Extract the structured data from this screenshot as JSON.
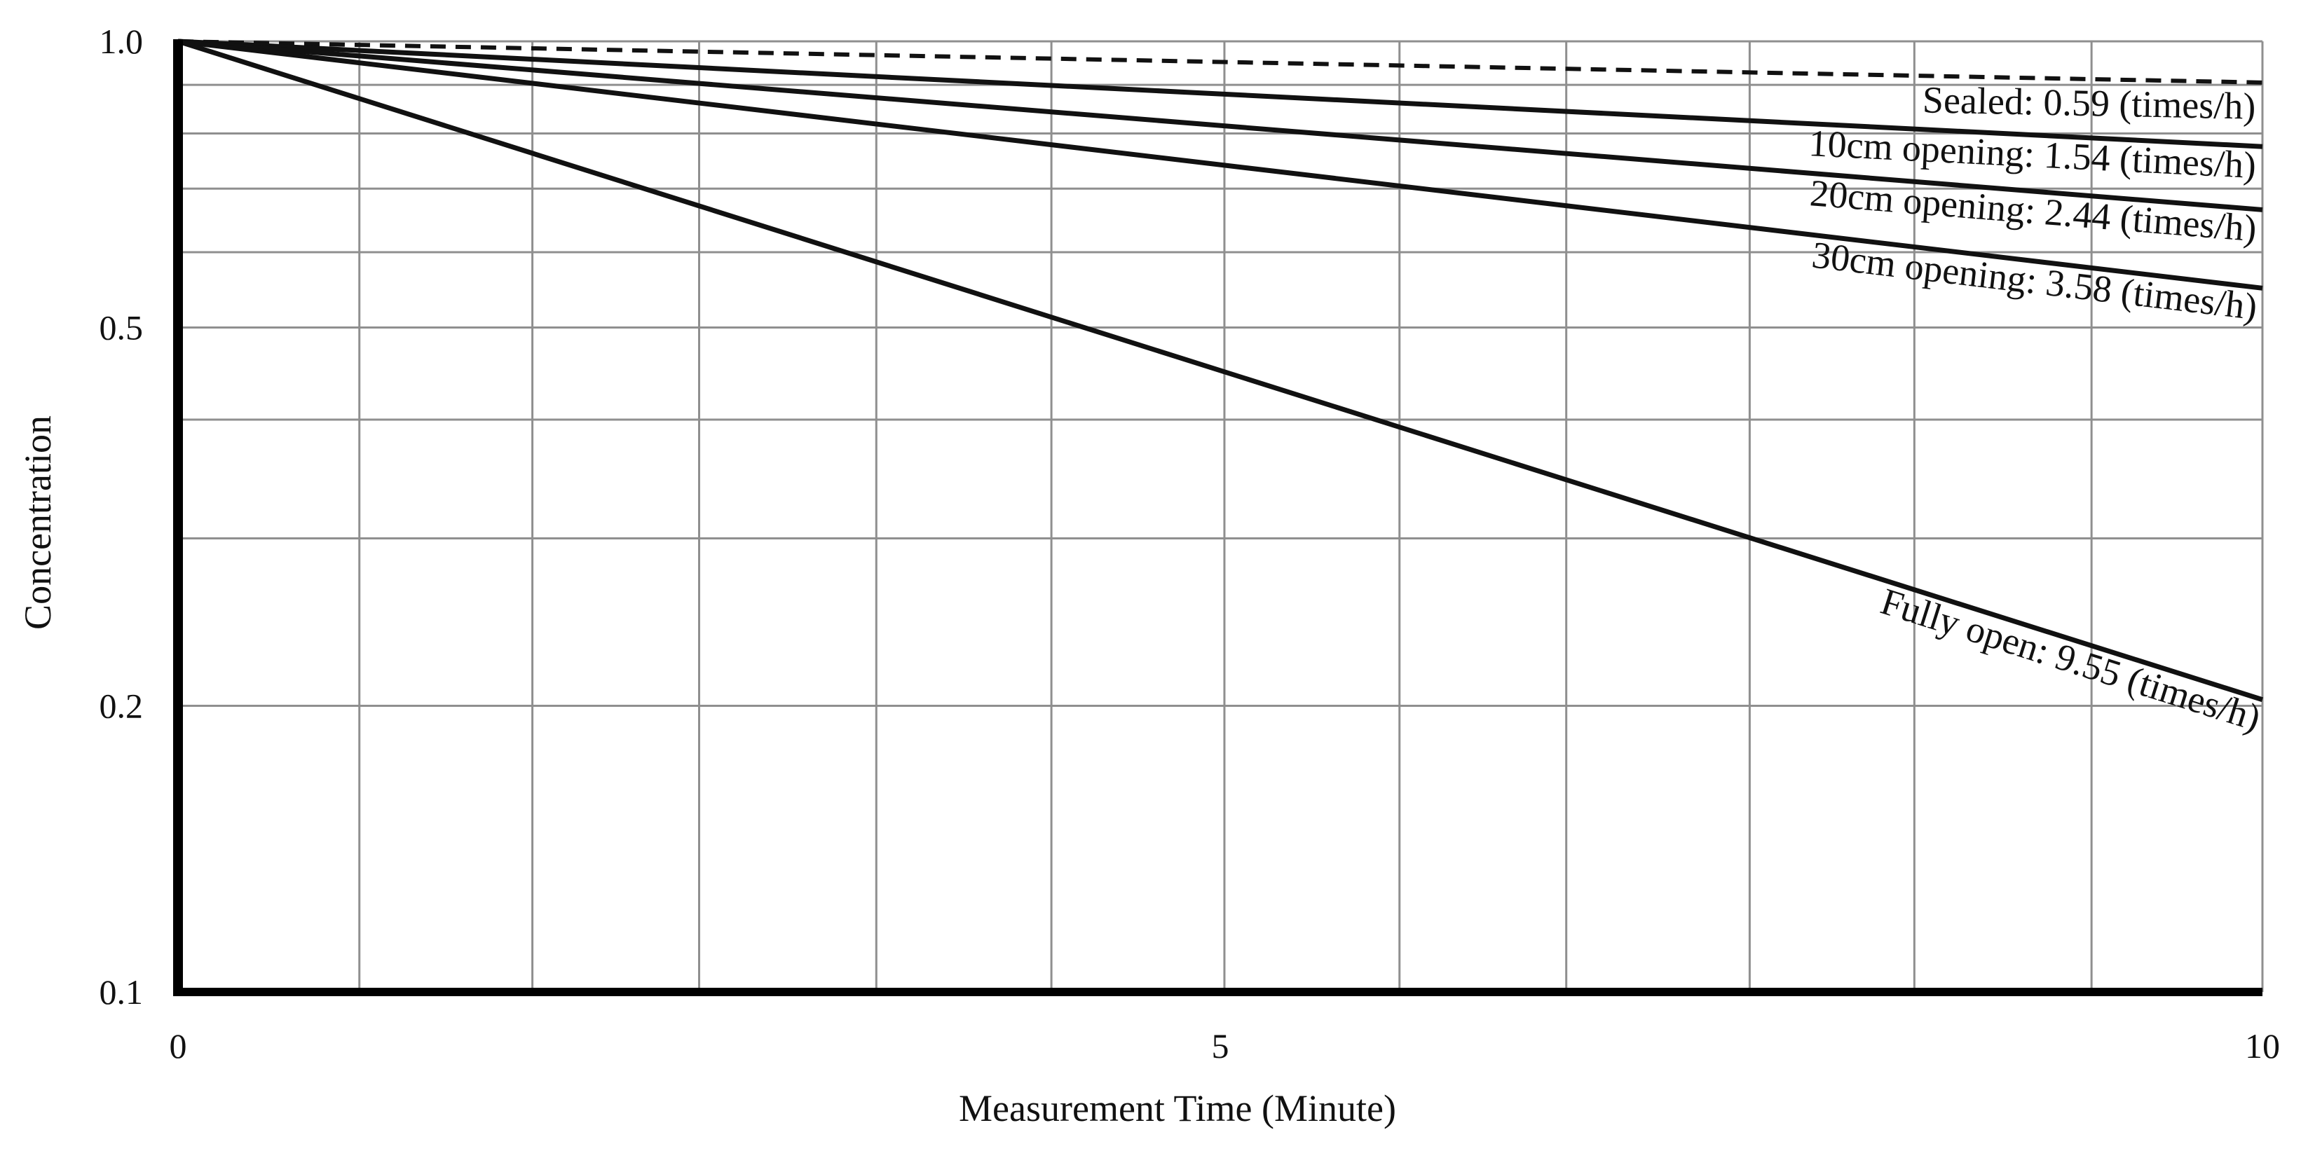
{
  "chart_data": {
    "type": "line",
    "title": "",
    "xlabel": "Measurement Time (Minute)",
    "ylabel": "Concentration",
    "x_scale": "linear",
    "y_scale": "log",
    "xlim": [
      0,
      10
    ],
    "ylim": [
      0.1,
      1.0
    ],
    "x_ticks": [
      {
        "value": 0,
        "label": "0"
      },
      {
        "value": 5,
        "label": "5"
      },
      {
        "value": 10,
        "label": "10"
      }
    ],
    "y_ticks": [
      {
        "value": 1.0,
        "label": "1.0"
      },
      {
        "value": 0.5,
        "label": "0.5"
      },
      {
        "value": 0.2,
        "label": "0.2"
      },
      {
        "value": 0.1,
        "label": "0.1"
      }
    ],
    "x_grid": [
      0.87,
      1.7,
      2.5,
      3.35,
      4.19,
      5.02,
      5.86,
      6.66,
      7.54,
      8.33,
      9.18
    ],
    "y_grid": [
      0.9,
      0.8,
      0.7,
      0.6,
      0.4,
      0.3,
      0.2
    ],
    "grid": true,
    "series": [
      {
        "name": "Sealed: 0.59 (times/h)",
        "style": "dashed",
        "x": [
          0,
          10
        ],
        "y": [
          1.0,
          0.905
        ]
      },
      {
        "name": "10cm opening: 1.54 (times/h)",
        "style": "solid",
        "x": [
          0,
          10
        ],
        "y": [
          1.0,
          0.775
        ]
      },
      {
        "name": "20cm opening: 2.44 (times/h)",
        "style": "solid",
        "x": [
          0,
          10
        ],
        "y": [
          1.0,
          0.665
        ]
      },
      {
        "name": "30cm opening: 3.58 (times/h)",
        "style": "solid",
        "x": [
          0,
          10
        ],
        "y": [
          1.0,
          0.55
        ]
      },
      {
        "name": "Fully open: 9.55 (times/h)",
        "style": "solid",
        "x": [
          0,
          10
        ],
        "y": [
          1.0,
          0.203
        ]
      }
    ],
    "annotations": [
      {
        "text": "Sealed: 0.59 (times/h)",
        "series": 0
      },
      {
        "text": "10cm opening: 1.54 (times/h)",
        "series": 1
      },
      {
        "text": "20cm opening: 2.44 (times/h)",
        "series": 2
      },
      {
        "text": "30cm opening: 3.58 (times/h)",
        "series": 3
      },
      {
        "text": "Fully open: 9.55 (times/h)",
        "series": 4
      }
    ]
  }
}
